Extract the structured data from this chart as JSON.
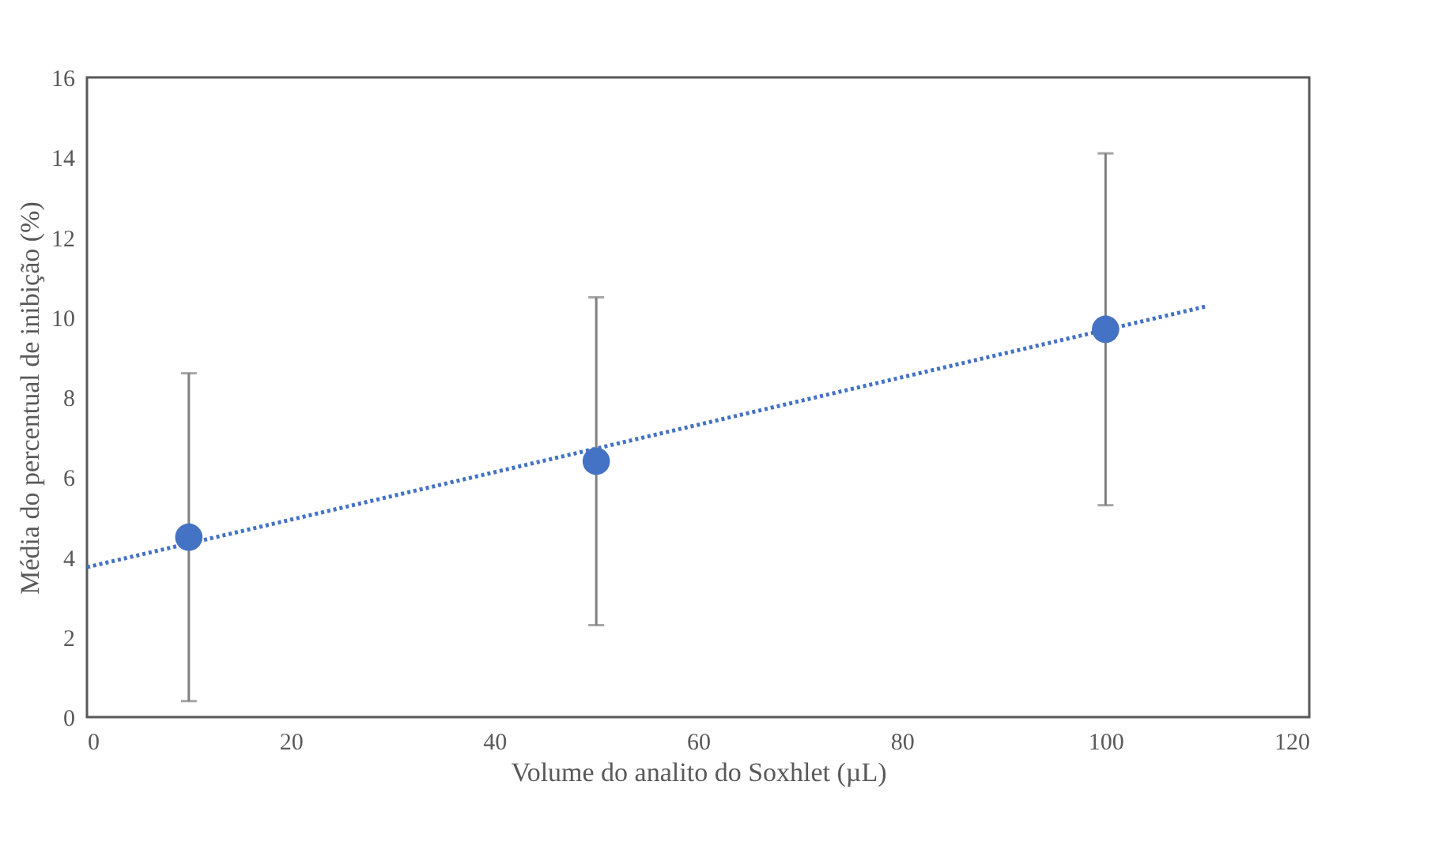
{
  "chart_data": {
    "type": "scatter",
    "xlabel": "Volume do analito do Soxhlet (µL)",
    "ylabel": "Média do percentual de inibição (%)",
    "xlim": [
      0,
      120
    ],
    "xticks": [
      0,
      20,
      40,
      60,
      80,
      100,
      120
    ],
    "ylim": [
      0,
      16
    ],
    "yticks": [
      0,
      2,
      4,
      6,
      8,
      10,
      12,
      14,
      16
    ],
    "grid": false,
    "series": [
      {
        "color": "#4472c4",
        "marker": "circle",
        "x": [
          10,
          50,
          100
        ],
        "values": [
          4.5,
          6.4,
          9.7
        ],
        "errors": [
          4.1,
          4.1,
          4.4
        ]
      },
      {
        "type": "line",
        "color": "#4472c4",
        "marker": "none",
        "line_style": "dotted",
        "x": [
          0,
          110
        ],
        "values": [
          3.75,
          10.28
        ]
      }
    ]
  }
}
